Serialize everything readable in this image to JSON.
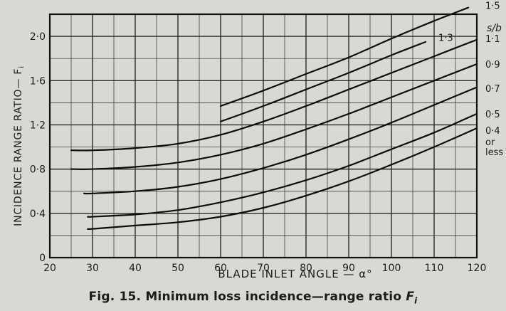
{
  "chart_data": {
    "type": "line",
    "title": "",
    "xlabel": "BLADE INLET ANGLE — α°",
    "ylabel": "INCIDENCE RANGE RATIO— F",
    "ylabel_sub": "i",
    "xlim": [
      20,
      120
    ],
    "ylim": [
      0,
      2.2
    ],
    "x_ticks": [
      20,
      30,
      40,
      50,
      60,
      70,
      80,
      90,
      100,
      110,
      120
    ],
    "y_ticks": [
      0,
      0.4,
      0.8,
      1.2,
      1.6,
      2.0
    ],
    "y_tick_labels": [
      "0",
      "0·4",
      "0·8",
      "1·2",
      "1·6",
      "2·0"
    ],
    "grid": true,
    "legend_header": "s/b",
    "series": [
      {
        "name": "1·5",
        "x": [
          60,
          70,
          80,
          90,
          100,
          110,
          118
        ],
        "y": [
          1.37,
          1.51,
          1.66,
          1.81,
          1.98,
          2.14,
          2.26
        ]
      },
      {
        "name": "1·3",
        "x": [
          60,
          70,
          80,
          90,
          100,
          108
        ],
        "y": [
          1.23,
          1.37,
          1.52,
          1.67,
          1.83,
          1.95
        ]
      },
      {
        "name": "1·1",
        "x": [
          25,
          30,
          40,
          50,
          60,
          70,
          80,
          90,
          100,
          110,
          120
        ],
        "y": [
          0.97,
          0.97,
          0.99,
          1.03,
          1.11,
          1.23,
          1.37,
          1.52,
          1.67,
          1.82,
          1.97
        ]
      },
      {
        "name": "0·9",
        "x": [
          25,
          30,
          40,
          50,
          60,
          70,
          80,
          90,
          100,
          110,
          120
        ],
        "y": [
          0.8,
          0.8,
          0.82,
          0.86,
          0.93,
          1.03,
          1.16,
          1.3,
          1.45,
          1.6,
          1.75
        ]
      },
      {
        "name": "0·7",
        "x": [
          28,
          30,
          40,
          50,
          60,
          70,
          80,
          90,
          100,
          110,
          120
        ],
        "y": [
          0.58,
          0.58,
          0.6,
          0.64,
          0.71,
          0.81,
          0.93,
          1.07,
          1.22,
          1.38,
          1.54
        ]
      },
      {
        "name": "0·5",
        "x": [
          29,
          30,
          40,
          50,
          60,
          70,
          80,
          90,
          100,
          110,
          120
        ],
        "y": [
          0.37,
          0.37,
          0.39,
          0.43,
          0.5,
          0.59,
          0.7,
          0.83,
          0.98,
          1.13,
          1.3
        ]
      },
      {
        "name": "0·4 or less",
        "x": [
          29,
          30,
          40,
          50,
          60,
          70,
          80,
          90,
          100,
          110,
          120
        ],
        "y": [
          0.26,
          0.26,
          0.29,
          0.32,
          0.37,
          0.45,
          0.56,
          0.69,
          0.84,
          1.0,
          1.17
        ]
      }
    ],
    "line_labels": [
      {
        "text": "1·5",
        "x": 122,
        "y": 2.28
      },
      {
        "text": "1·3",
        "x": 111,
        "y": 1.99
      },
      {
        "text": "1·1",
        "x": 122,
        "y": 1.98
      },
      {
        "text": "0·9",
        "x": 122,
        "y": 1.75
      },
      {
        "text": "0·7",
        "x": 122,
        "y": 1.53
      },
      {
        "text": "0·5",
        "x": 122,
        "y": 1.3
      },
      {
        "text": "0·4",
        "x": 122,
        "y": 1.15
      },
      {
        "text": "or",
        "x": 122,
        "y": 1.05
      },
      {
        "text": "less",
        "x": 122,
        "y": 0.96
      }
    ]
  },
  "caption": {
    "prefix": "Fig. 15. Minimum loss incidence—range ratio ",
    "symbol": "F",
    "subscript": "i"
  }
}
